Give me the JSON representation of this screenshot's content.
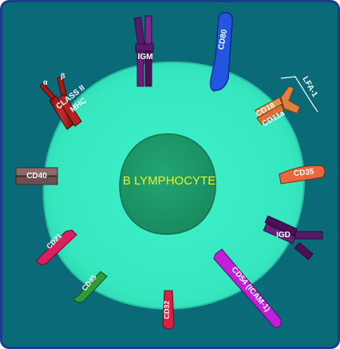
{
  "title": "B LYMPHOCYTE",
  "markers": {
    "cd80": "CD80",
    "igm": "IGM",
    "class2_line1": "CLASS II",
    "class2_line2": "MHC",
    "alpha": "α",
    "beta": "β",
    "lfa1": "LFA-1",
    "cd18": "CD18",
    "cd11a": "CD11a",
    "cd40": "CD40",
    "cd35": "CD35",
    "igd": "IGD",
    "cd21": "CD21",
    "cd45": "CD45",
    "cd32": "CD32",
    "cd54": "CD54 (ICAM-1)"
  },
  "colors": {
    "background": "#0a6a78",
    "frame": "#1b3b8c",
    "cell": "#3ef0c8",
    "nucleus": "#1e9a6a",
    "title_text": "#f2f21a"
  }
}
